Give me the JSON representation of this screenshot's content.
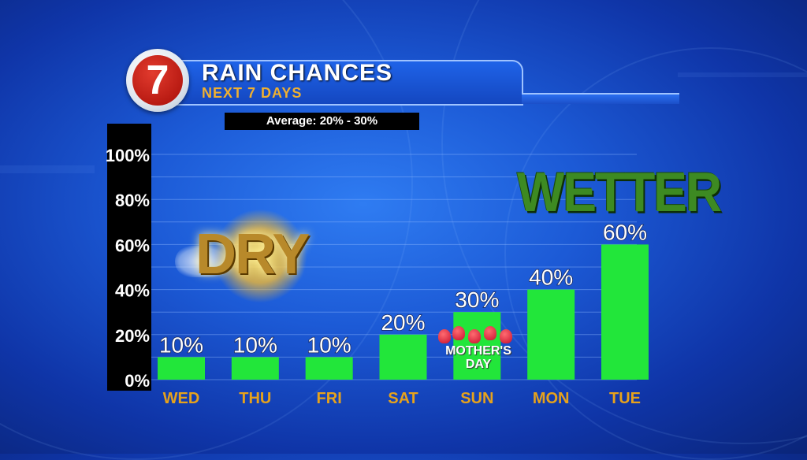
{
  "header": {
    "title": "RAIN CHANCES",
    "subtitle": "NEXT 7 DAYS",
    "logo_text": "7",
    "average_label": "Average: 20% - 30%"
  },
  "annotations": {
    "dry": "DRY",
    "wetter": "WETTER",
    "holiday": "MOTHER'S DAY"
  },
  "chart_data": {
    "type": "bar",
    "title": "RAIN CHANCES",
    "subtitle": "NEXT 7 DAYS",
    "categories": [
      "WED",
      "THU",
      "FRI",
      "SAT",
      "SUN",
      "MON",
      "TUE"
    ],
    "values": [
      10,
      10,
      10,
      20,
      30,
      40,
      60
    ],
    "data_labels": [
      "10%",
      "10%",
      "10%",
      "20%",
      "30%",
      "40%",
      "60%"
    ],
    "y_ticks": [
      0,
      20,
      40,
      60,
      80,
      100
    ],
    "y_tick_labels": [
      "0%",
      "20%",
      "40%",
      "60%",
      "80%",
      "100%"
    ],
    "ylim": [
      0,
      100
    ],
    "grid": true,
    "colors": {
      "bar": "#22e63a",
      "category_label": "#e6a21c",
      "tick_label": "#ffffff",
      "grid": "#8fb8ff"
    }
  }
}
